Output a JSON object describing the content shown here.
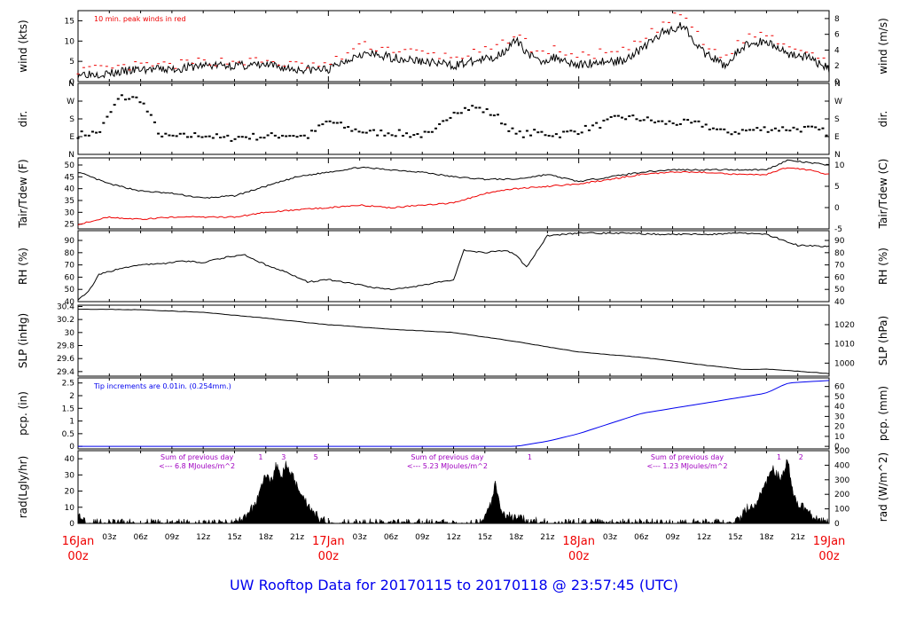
{
  "title": "UW Rooftop Data for 20170115  to  20170118 @ 23:57:45  (UTC)",
  "colors": {
    "frame": "#000000",
    "date": "#ee0000",
    "title": "#0000ee",
    "tair": "#000000",
    "tdew": "#ee0000",
    "gust": "#ee0000",
    "pcp": "#0000ee",
    "note_pcp": "#0000ee",
    "note_rad": "#a000c0"
  },
  "time_axis": {
    "hours_total": 72,
    "hour_ticks": [
      "03z",
      "06z",
      "09z",
      "12z",
      "15z",
      "18z",
      "21z",
      "03z",
      "06z",
      "09z",
      "12z",
      "15z",
      "18z",
      "21z",
      "03z",
      "06z",
      "09z",
      "12z",
      "15z",
      "18z",
      "21z"
    ],
    "hour_tick_hours": [
      3,
      6,
      9,
      12,
      15,
      18,
      21,
      27,
      30,
      33,
      36,
      39,
      42,
      45,
      51,
      54,
      57,
      60,
      63,
      66,
      69
    ],
    "day_labels": [
      {
        "date": "16Jan",
        "hour": "00z",
        "at": 0
      },
      {
        "date": "17Jan",
        "hour": "00z",
        "at": 24
      },
      {
        "date": "18Jan",
        "hour": "00z",
        "at": 48
      },
      {
        "date": "19Jan",
        "hour": "00z",
        "at": 72
      }
    ]
  },
  "chart_data": [
    {
      "type": "line",
      "panel": "wind",
      "ylabel_left": "wind (kts)",
      "ylabel_right": "wind (m/s)",
      "left_ticks": [
        0,
        5,
        10,
        15
      ],
      "right_ticks": [
        0,
        2,
        4,
        6,
        8
      ],
      "ylim": [
        0,
        17.5
      ],
      "annotation": "10 min. peak winds in red",
      "series": [
        {
          "name": "wind",
          "x": [
            0,
            3,
            6,
            9,
            12,
            15,
            18,
            21,
            24,
            27,
            30,
            33,
            36,
            38,
            40,
            42,
            44,
            46,
            48,
            50,
            52,
            54,
            56,
            58,
            60,
            62,
            64,
            66,
            68,
            70,
            72
          ],
          "values": [
            2,
            2,
            3,
            3,
            4,
            4,
            4,
            3,
            3,
            7,
            6,
            5,
            4,
            5,
            6,
            10,
            5,
            6,
            4,
            5,
            5,
            8,
            12,
            14,
            7,
            4,
            9,
            10,
            7,
            6,
            3
          ]
        },
        {
          "name": "peak",
          "x": [
            0,
            3,
            6,
            9,
            12,
            15,
            18,
            21,
            24,
            27,
            30,
            33,
            36,
            38,
            40,
            42,
            44,
            46,
            48,
            50,
            52,
            54,
            56,
            58,
            60,
            62,
            64,
            66,
            68,
            70,
            72
          ],
          "values": [
            3,
            3,
            4,
            4,
            5,
            5,
            5,
            4,
            4,
            9,
            8,
            7,
            6,
            7,
            8,
            12,
            7,
            8,
            6,
            7,
            7,
            10,
            14,
            17,
            9,
            6,
            11,
            12,
            9,
            8,
            5
          ]
        }
      ]
    },
    {
      "type": "scatter",
      "panel": "dir",
      "ylabel_left": "dir.",
      "ylabel_right": "dir.",
      "left_ticks": [
        "N",
        "E",
        "S",
        "W",
        "N"
      ],
      "right_ticks": [
        "N",
        "E",
        "S",
        "W",
        "N"
      ],
      "ylim": [
        0,
        360
      ],
      "x": [
        0,
        2,
        4,
        6,
        8,
        10,
        12,
        14,
        16,
        18,
        20,
        22,
        24,
        26,
        28,
        30,
        32,
        34,
        36,
        38,
        40,
        42,
        44,
        46,
        48,
        50,
        52,
        54,
        56,
        58,
        60,
        62,
        64,
        66,
        68,
        70,
        72
      ],
      "values": [
        100,
        110,
        290,
        280,
        90,
        90,
        100,
        80,
        90,
        90,
        100,
        90,
        170,
        130,
        110,
        110,
        100,
        100,
        220,
        240,
        200,
        100,
        110,
        100,
        120,
        150,
        190,
        180,
        160,
        160,
        150,
        110,
        120,
        130,
        130,
        130,
        110
      ]
    },
    {
      "type": "line",
      "panel": "temp",
      "ylabel_left": "Tair/Tdew (F)",
      "ylabel_right": "Tair/Tdew (C)",
      "left_ticks": [
        25,
        30,
        35,
        40,
        45,
        50
      ],
      "right_ticks": [
        -5,
        0,
        5,
        10
      ],
      "ylim": [
        23,
        53
      ],
      "series": [
        {
          "name": "Tair",
          "x": [
            0,
            3,
            6,
            9,
            12,
            15,
            18,
            21,
            24,
            27,
            30,
            33,
            36,
            39,
            42,
            45,
            48,
            51,
            54,
            57,
            60,
            63,
            66,
            68,
            70,
            72
          ],
          "values": [
            47,
            42,
            39,
            38,
            36,
            37,
            41,
            45,
            47,
            49,
            48,
            47,
            45,
            44,
            44,
            46,
            43,
            45,
            47,
            48,
            48,
            48,
            48,
            52,
            51,
            50
          ]
        },
        {
          "name": "Tdew",
          "x": [
            0,
            3,
            6,
            9,
            12,
            15,
            18,
            21,
            24,
            27,
            30,
            33,
            36,
            39,
            42,
            45,
            48,
            51,
            54,
            57,
            60,
            63,
            66,
            68,
            70,
            72
          ],
          "values": [
            25,
            28,
            27,
            28,
            28,
            28,
            30,
            31,
            32,
            33,
            32,
            33,
            34,
            38,
            40,
            41,
            42,
            44,
            46,
            47,
            47,
            46,
            46,
            49,
            48,
            46
          ]
        }
      ]
    },
    {
      "type": "line",
      "panel": "rh",
      "ylabel_left": "RH (%)",
      "ylabel_right": "RH (%)",
      "left_ticks": [
        40,
        50,
        60,
        70,
        80,
        90
      ],
      "right_ticks": [
        40,
        50,
        60,
        70,
        80,
        90
      ],
      "ylim": [
        40,
        98
      ],
      "series": [
        {
          "name": "RH",
          "x": [
            0,
            1,
            2,
            4,
            6,
            8,
            10,
            12,
            14,
            16,
            18,
            20,
            22,
            24,
            26,
            28,
            30,
            32,
            34,
            36,
            37,
            39,
            41,
            42,
            43,
            45,
            48,
            52,
            56,
            60,
            64,
            66,
            69,
            72
          ],
          "values": [
            42,
            48,
            62,
            67,
            70,
            71,
            73,
            72,
            76,
            78,
            70,
            64,
            56,
            58,
            55,
            52,
            50,
            52,
            55,
            58,
            82,
            80,
            82,
            78,
            68,
            94,
            96,
            96,
            95,
            95,
            96,
            95,
            86,
            85
          ]
        }
      ]
    },
    {
      "type": "line",
      "panel": "slp",
      "ylabel_left": "SLP (inHg)",
      "ylabel_right": "SLP (hPa)",
      "left_ticks": [
        29.4,
        29.6,
        29.8,
        30.0,
        30.2,
        30.4
      ],
      "right_ticks": [
        1000,
        1010,
        1020
      ],
      "ylim": [
        29.33,
        30.42
      ],
      "series": [
        {
          "name": "SLP",
          "x": [
            0,
            6,
            12,
            18,
            24,
            30,
            36,
            42,
            48,
            54,
            60,
            64,
            66,
            72
          ],
          "values": [
            30.36,
            30.35,
            30.31,
            30.22,
            30.12,
            30.05,
            30.0,
            29.86,
            29.7,
            29.62,
            29.5,
            29.43,
            29.44,
            29.37
          ]
        }
      ]
    },
    {
      "type": "area",
      "panel": "pcp",
      "ylabel_left": "pcp. (in)",
      "ylabel_right": "pcp. (mm)",
      "left_ticks": [
        0.0,
        0.5,
        1.0,
        1.5,
        2.0,
        2.5
      ],
      "right_ticks": [
        0,
        10,
        20,
        30,
        40,
        50,
        60
      ],
      "ylim": [
        -0.1,
        2.7
      ],
      "annotation": "Tip increments are 0.01in. (0.254mm.)",
      "series": [
        {
          "name": "pcp",
          "x": [
            0,
            42,
            45,
            48,
            51,
            54,
            57,
            60,
            63,
            66,
            68,
            72
          ],
          "values": [
            0,
            0,
            0.2,
            0.5,
            0.9,
            1.3,
            1.5,
            1.7,
            1.9,
            2.1,
            2.5,
            2.6
          ]
        }
      ]
    },
    {
      "type": "area",
      "panel": "rad",
      "ylabel_left": "rad(Lgly/hr)",
      "ylabel_right": "rad (W/m^2)",
      "left_ticks": [
        0,
        10,
        20,
        30,
        40
      ],
      "right_ticks": [
        0,
        100,
        200,
        300,
        400,
        500
      ],
      "ylim": [
        0,
        45
      ],
      "notes": [
        {
          "line1": "Sum of previous day",
          "line2": "<--- 6.8 MJoules/m^2",
          "at": 8
        },
        {
          "line1": "Sum of previous day",
          "line2": "<--- 5.23 MJoules/m^2",
          "at": 32
        },
        {
          "line1": "Sum of previous day",
          "line2": "<--- 1.23 MJoules/m^2",
          "at": 55
        }
      ],
      "markers": [
        {
          "label": "1",
          "at": 17.5
        },
        {
          "label": "3",
          "at": 19.7
        },
        {
          "label": "5",
          "at": 22.8
        },
        {
          "label": "1",
          "at": 43.3
        },
        {
          "label": "1",
          "at": 67.2
        },
        {
          "label": "2",
          "at": 69.3
        }
      ],
      "series": [
        {
          "name": "rad",
          "x": [
            0,
            0.5,
            1,
            15,
            16,
            17,
            17.5,
            18,
            18.5,
            19,
            19.5,
            20,
            20.5,
            21,
            21.5,
            22,
            22.5,
            23,
            24,
            38.5,
            39,
            39.5,
            40,
            40.5,
            41,
            41.5,
            42,
            43,
            44,
            45,
            63,
            63.5,
            64,
            64.5,
            65,
            65.5,
            66,
            66.5,
            67,
            67.5,
            68,
            68.5,
            69,
            69.5,
            70,
            70.5,
            71,
            72
          ],
          "values": [
            4,
            3,
            0,
            0,
            3,
            12,
            22,
            30,
            26,
            36,
            28,
            38,
            30,
            24,
            18,
            12,
            8,
            4,
            0,
            0,
            6,
            10,
            24,
            8,
            6,
            4,
            3,
            2,
            1,
            0,
            0,
            4,
            8,
            12,
            10,
            20,
            26,
            34,
            30,
            28,
            40,
            22,
            12,
            10,
            6,
            4,
            2,
            0
          ]
        }
      ]
    }
  ]
}
